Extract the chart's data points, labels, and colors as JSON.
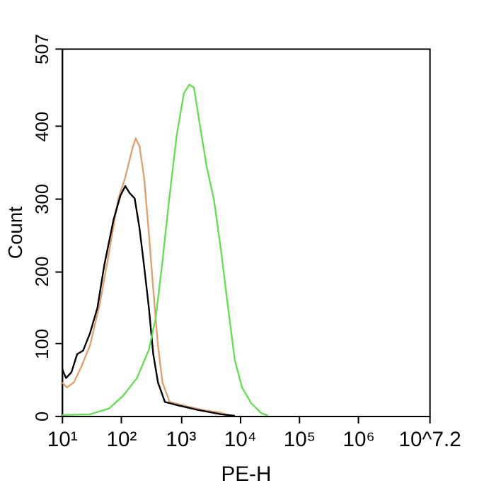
{
  "chart_data": {
    "type": "line",
    "xlabel": "PE-H",
    "ylabel": "Count",
    "log": "x",
    "xlim": [
      10,
      15848932
    ],
    "ylim": [
      0,
      507
    ],
    "xticks": [
      {
        "value": 10,
        "label": "10¹"
      },
      {
        "value": 100,
        "label": "10²"
      },
      {
        "value": 1000,
        "label": "10³"
      },
      {
        "value": 10000,
        "label": "10⁴"
      },
      {
        "value": 100000,
        "label": "10⁵"
      },
      {
        "value": 1000000,
        "label": "10⁶"
      },
      {
        "value": 15848932,
        "label": "10^7.2"
      }
    ],
    "yticks": [
      0,
      100,
      200,
      300,
      400,
      507
    ],
    "grid": false,
    "legend": false,
    "marker": "none",
    "line_style": "solid",
    "series": [
      {
        "color": "#e0a070",
        "x": [
          10.2,
          12.2,
          16,
          21,
          30,
          44,
          63,
          89,
          118,
          155,
          177,
          205,
          245,
          295,
          350,
          420,
          500,
          660,
          1150,
          2350,
          4900,
          6900
        ],
        "values": [
          46,
          39,
          46,
          66,
          97,
          155,
          226,
          298,
          329,
          368,
          383,
          372,
          329,
          252,
          174,
          97,
          46,
          19,
          14,
          8,
          4,
          0
        ]
      },
      {
        "color": "#000000",
        "x": [
          10.2,
          11.8,
          14.6,
          18.2,
          23,
          30,
          40,
          52,
          75,
          98,
          118,
          141,
          170,
          205,
          245,
          295,
          350,
          420,
          550,
          950,
          1950,
          4900,
          8300
        ],
        "values": [
          64,
          52,
          60,
          85,
          90,
          114,
          149,
          207,
          271,
          304,
          317,
          307,
          300,
          259,
          207,
          149,
          85,
          46,
          19,
          14,
          8,
          2,
          0
        ]
      },
      {
        "color": "#66dd55",
        "x": [
          10.2,
          30,
          63,
          107,
          186,
          295,
          385,
          500,
          660,
          870,
          1150,
          1420,
          1700,
          2150,
          2800,
          3700,
          4900,
          6400,
          8300,
          11000,
          15800,
          23000,
          30000
        ],
        "values": [
          1,
          2,
          10,
          27,
          52,
          91,
          135,
          213,
          304,
          387,
          445,
          457,
          453,
          400,
          343,
          298,
          226,
          149,
          77,
          39,
          17,
          4,
          0
        ]
      }
    ]
  }
}
